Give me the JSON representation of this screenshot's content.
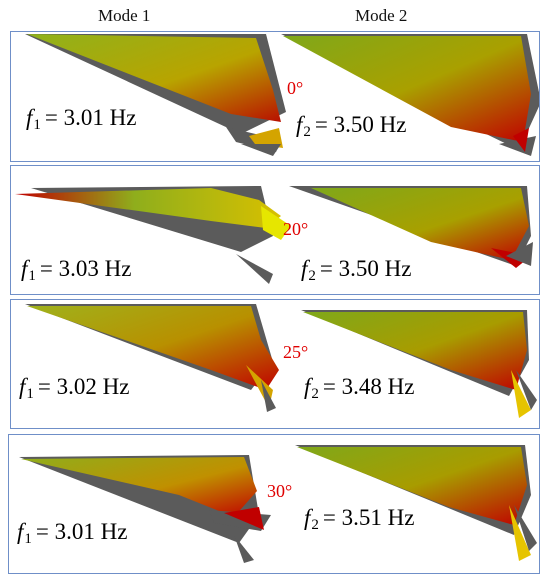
{
  "columns": [
    "Mode 1",
    "Mode 2"
  ],
  "rows": [
    {
      "angle": "0°",
      "mode1": {
        "symbol": "f",
        "sub": "1",
        "text": "= 3.01 Hz"
      },
      "mode2": {
        "symbol": "f",
        "sub": "2",
        "text": "= 3.50 Hz"
      }
    },
    {
      "angle": "20°",
      "mode1": {
        "symbol": "f",
        "sub": "1",
        "text": "= 3.03 Hz"
      },
      "mode2": {
        "symbol": "f",
        "sub": "2",
        "text": "= 3.50 Hz"
      }
    },
    {
      "angle": "25°",
      "mode1": {
        "symbol": "f",
        "sub": "1",
        "text": "= 3.02 Hz"
      },
      "mode2": {
        "symbol": "f",
        "sub": "2",
        "text": "= 3.48 Hz"
      }
    },
    {
      "angle": "30°",
      "mode1": {
        "symbol": "f",
        "sub": "1",
        "text": "= 3.01 Hz"
      },
      "mode2": {
        "symbol": "f",
        "sub": "2",
        "text": "= 3.51 Hz"
      }
    }
  ],
  "colors": {
    "frame": "#6f8fc8",
    "angle": "#e00000",
    "wing_grey": "#5b5b5b",
    "mode_green": "#7fae1c",
    "mode_red": "#c40000",
    "mode_yellow": "#e6e600"
  }
}
